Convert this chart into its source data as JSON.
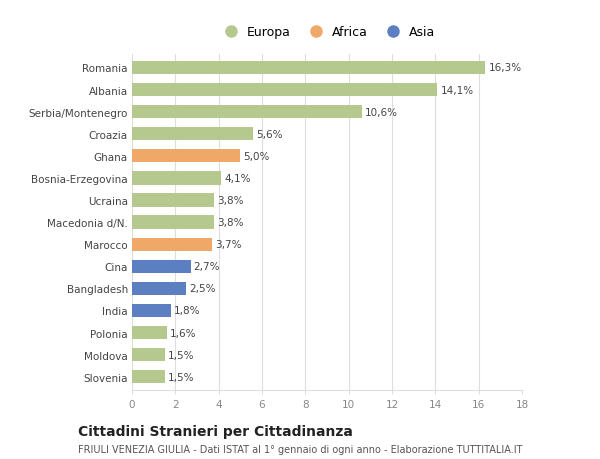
{
  "countries": [
    "Romania",
    "Albania",
    "Serbia/Montenegro",
    "Croazia",
    "Ghana",
    "Bosnia-Erzegovina",
    "Ucraina",
    "Macedonia d/N.",
    "Marocco",
    "Cina",
    "Bangladesh",
    "India",
    "Polonia",
    "Moldova",
    "Slovenia"
  ],
  "values": [
    16.3,
    14.1,
    10.6,
    5.6,
    5.0,
    4.1,
    3.8,
    3.8,
    3.7,
    2.7,
    2.5,
    1.8,
    1.6,
    1.5,
    1.5
  ],
  "labels": [
    "16,3%",
    "14,1%",
    "10,6%",
    "5,6%",
    "5,0%",
    "4,1%",
    "3,8%",
    "3,8%",
    "3,7%",
    "2,7%",
    "2,5%",
    "1,8%",
    "1,6%",
    "1,5%",
    "1,5%"
  ],
  "continents": [
    "Europa",
    "Europa",
    "Europa",
    "Europa",
    "Africa",
    "Europa",
    "Europa",
    "Europa",
    "Africa",
    "Asia",
    "Asia",
    "Asia",
    "Europa",
    "Europa",
    "Europa"
  ],
  "colors": {
    "Europa": "#b5c98e",
    "Africa": "#f0a868",
    "Asia": "#5b7fc0"
  },
  "xlim": [
    0,
    18
  ],
  "xticks": [
    0,
    2,
    4,
    6,
    8,
    10,
    12,
    14,
    16,
    18
  ],
  "title": "Cittadini Stranieri per Cittadinanza",
  "subtitle": "FRIULI VENEZIA GIULIA - Dati ISTAT al 1° gennaio di ogni anno - Elaborazione TUTTITALIA.IT",
  "background_color": "#ffffff",
  "bar_height": 0.6,
  "grid_color": "#dddddd",
  "label_fontsize": 7.5,
  "tick_fontsize": 7.5,
  "title_fontsize": 10,
  "subtitle_fontsize": 7.0,
  "legend_fontsize": 9.0
}
